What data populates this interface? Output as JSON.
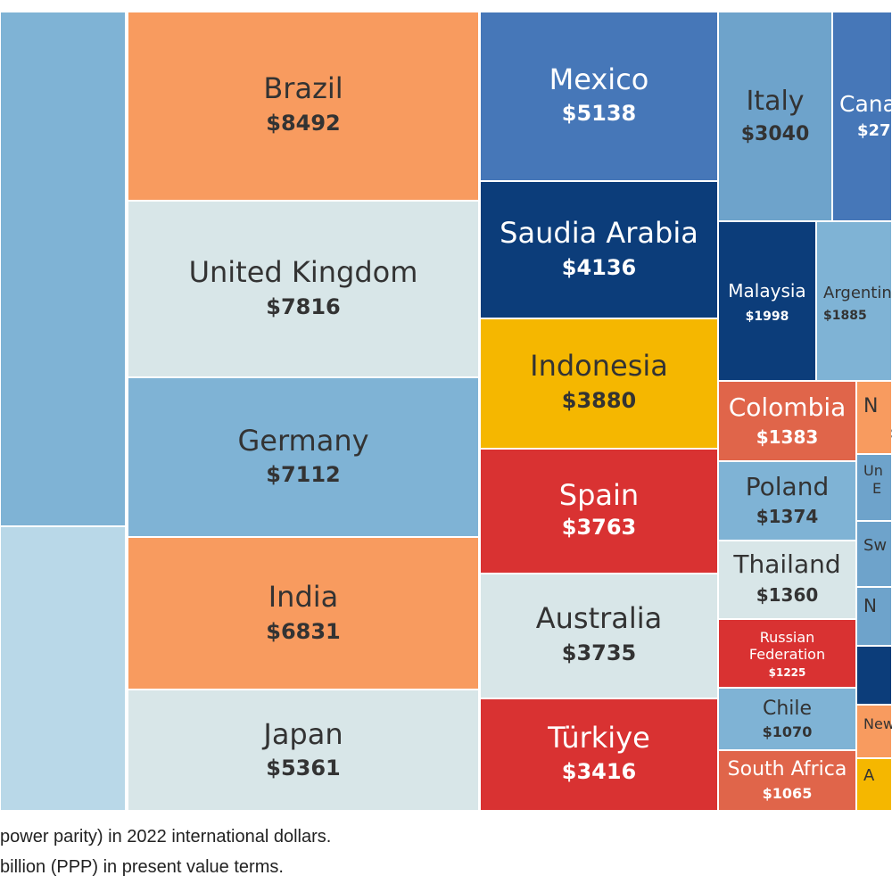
{
  "chart_data": {
    "type": "treemap",
    "unit": "$ billion (PPP)",
    "items": [
      {
        "name": "",
        "value": null,
        "color": "#7fb3d5"
      },
      {
        "name": "",
        "value": null,
        "color": "#b9d8e8"
      },
      {
        "name": "Brazil",
        "value": 8492,
        "color": "#f89b5f"
      },
      {
        "name": "United Kingdom",
        "value": 7816,
        "color": "#d8e6e8"
      },
      {
        "name": "Germany",
        "value": 7112,
        "color": "#7fb3d5"
      },
      {
        "name": "India",
        "value": 6831,
        "color": "#f89b5f"
      },
      {
        "name": "Japan",
        "value": 5361,
        "color": "#d8e6e8"
      },
      {
        "name": "Mexico",
        "value": 5138,
        "color": "#4677b8"
      },
      {
        "name": "Saudia Arabia",
        "value": 4136,
        "color": "#0c3d7a"
      },
      {
        "name": "Indonesia",
        "value": 3880,
        "color": "#f5b700"
      },
      {
        "name": "Spain",
        "value": 3763,
        "color": "#d93232"
      },
      {
        "name": "Australia",
        "value": 3735,
        "color": "#d8e6e8"
      },
      {
        "name": "Türkiye",
        "value": 3416,
        "color": "#d93232"
      },
      {
        "name": "Italy",
        "value": 3040,
        "color": "#6ea3cb"
      },
      {
        "name": "Cana",
        "value_text": "$27",
        "value": null,
        "color": "#4677b8"
      },
      {
        "name": "Malaysia",
        "value": 1998,
        "color": "#0c3d7a"
      },
      {
        "name": "Argentin",
        "value": 1885,
        "color": "#7fb3d5"
      },
      {
        "name": "Colombia",
        "value": 1383,
        "color": "#e0654a"
      },
      {
        "name": "Poland",
        "value": 1374,
        "color": "#7fb3d5"
      },
      {
        "name": "Thailand",
        "value": 1360,
        "color": "#d8e6e8"
      },
      {
        "name": "Russian Federation",
        "value": 1225,
        "color": "#d93232"
      },
      {
        "name": "Chile",
        "value": 1070,
        "color": "#7fb3d5"
      },
      {
        "name": "South Africa",
        "value": 1065,
        "color": "#e0654a"
      },
      {
        "name": "N",
        "value_text": "$",
        "value": null,
        "color": "#f89b5f"
      },
      {
        "name": "Un E",
        "value": null,
        "color": "#6ea3cb"
      },
      {
        "name": "Sw",
        "value": null,
        "color": "#6ea3cb"
      },
      {
        "name": "N",
        "value": null,
        "color": "#6ea3cb"
      },
      {
        "name": "",
        "value": null,
        "color": "#0c3d7a"
      },
      {
        "name": "New",
        "value": null,
        "color": "#f89b5f"
      },
      {
        "name": "A",
        "value": null,
        "color": "#f5b700"
      }
    ]
  },
  "footnotes": [
    "power parity) in 2022 international dollars.",
    "billion (PPP) in present value terms."
  ]
}
